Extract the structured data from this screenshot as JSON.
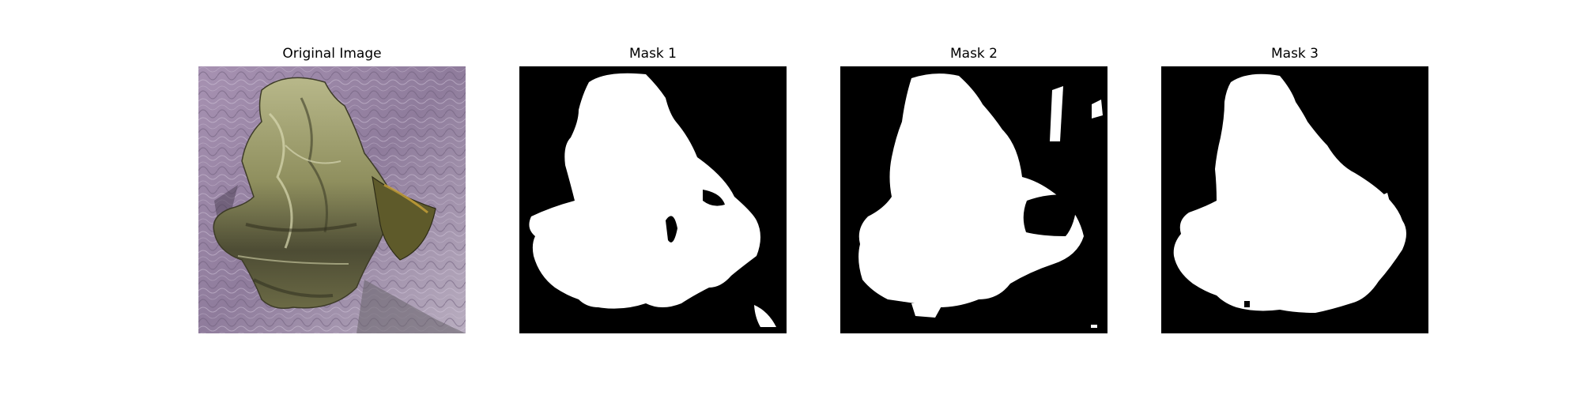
{
  "figure": {
    "panels": [
      {
        "title": "Original Image",
        "kind": "photo",
        "subject": "crumpled-leaf-on-purple-textile"
      },
      {
        "title": "Mask 1",
        "kind": "binary-mask"
      },
      {
        "title": "Mask 2",
        "kind": "binary-mask"
      },
      {
        "title": "Mask 3",
        "kind": "binary-mask"
      }
    ]
  },
  "colors": {
    "background": "#ffffff",
    "mask_fg": "#ffffff",
    "mask_bg": "#000000",
    "textile": "#9b88a6",
    "leaf": "#8c8a5c"
  }
}
